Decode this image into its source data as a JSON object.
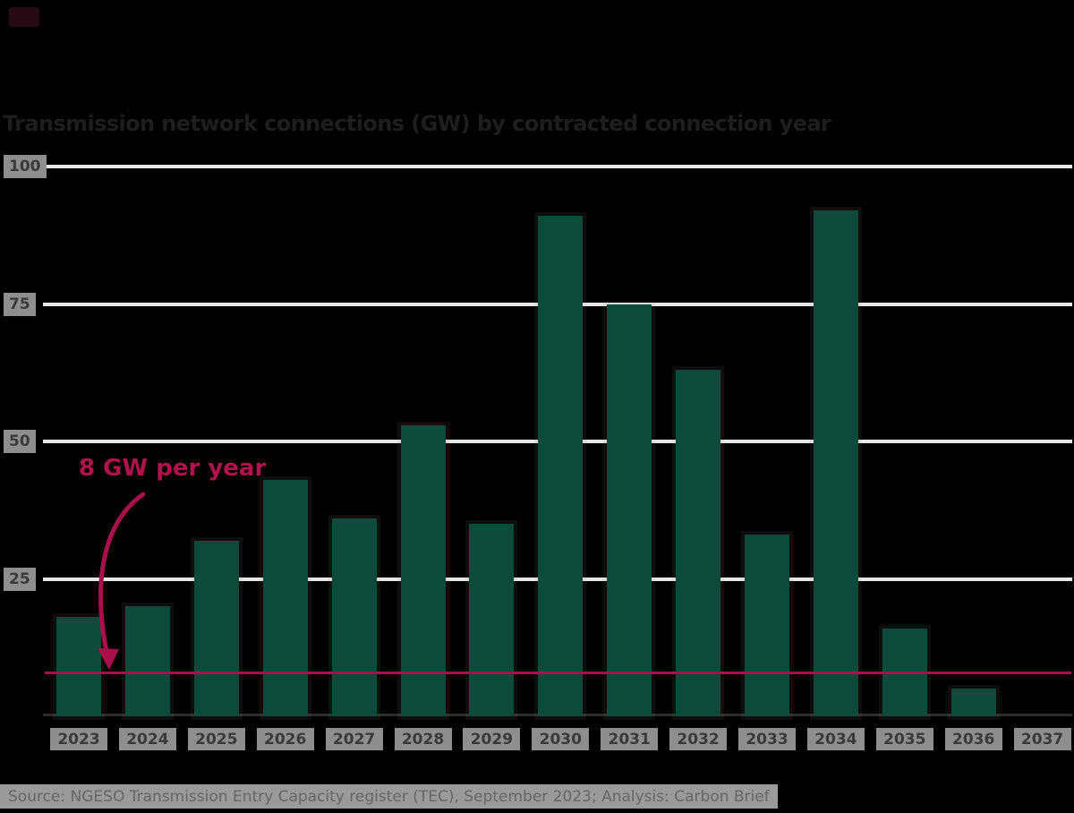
{
  "title": "Transmission network connections (GW) by contracted connection year",
  "source": "Source: NGESO Transmission Entry Capacity register (TEC), September 2023; Analysis: Carbon Brief",
  "annotation": {
    "ref_label": "8 GW per year"
  },
  "colors": {
    "background": "#000000",
    "bar": "#0e4a3a",
    "reference_line": "#a8104a",
    "annotation_text": "#b0134b",
    "gridline": "#e7e7e7",
    "axis_line": "#2c2c2c",
    "label_chip_bg": "#8e8e8e",
    "label_chip_text": "#3a3a3a",
    "title_text": "#1e1e1e",
    "source_band_bg": "#9a9a9a",
    "source_text": "#666666"
  },
  "chart_data": {
    "type": "bar",
    "title": "Transmission network connections (GW) by contracted connection year",
    "xlabel": "Contracted connection year",
    "ylabel": "GW",
    "unit": "GW",
    "categories": [
      "2023",
      "2024",
      "2025",
      "2026",
      "2027",
      "2028",
      "2029",
      "2030",
      "2031",
      "2032",
      "2033",
      "2034",
      "2035",
      "2036",
      "2037"
    ],
    "values": [
      18,
      20,
      32,
      43,
      36,
      53,
      35,
      91,
      75,
      63,
      33,
      92,
      16,
      5,
      0
    ],
    "yticks": [
      25,
      50,
      75,
      100
    ],
    "ylim": [
      0,
      100
    ],
    "grid": "horizontal",
    "legend": "none",
    "ref_line": {
      "value": 8,
      "label": "8 GW per year"
    }
  }
}
